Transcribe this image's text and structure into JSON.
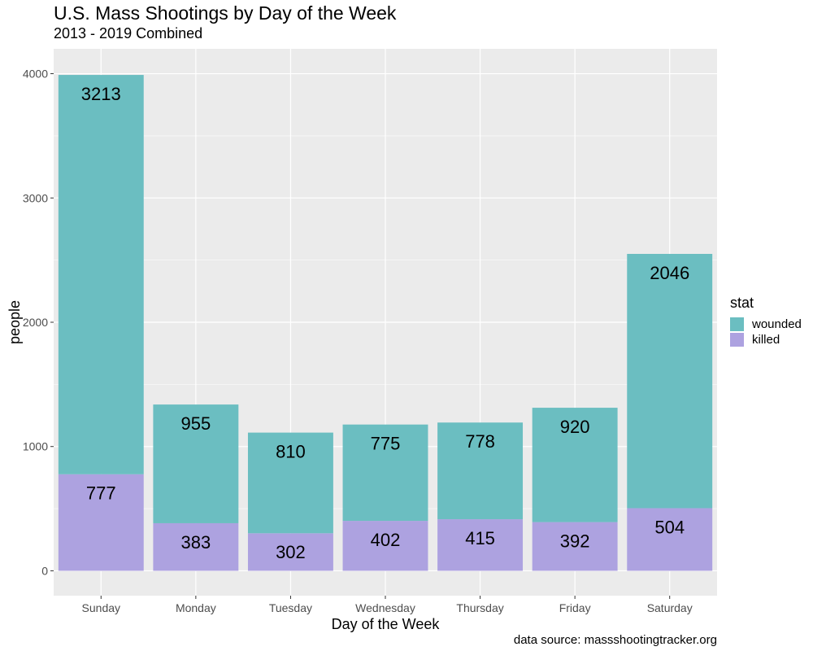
{
  "chart_data": {
    "type": "bar",
    "stacked": true,
    "title": "U.S. Mass Shootings by Day of the Week",
    "subtitle": "2013 - 2019 Combined",
    "xlabel": "Day of the Week",
    "ylabel": "people",
    "caption": "data source: massshootingtracker.org",
    "categories": [
      "Sunday",
      "Monday",
      "Tuesday",
      "Wednesday",
      "Thursday",
      "Friday",
      "Saturday"
    ],
    "series": [
      {
        "name": "killed",
        "values": [
          777,
          383,
          302,
          402,
          415,
          392,
          504
        ],
        "color": "#ada2e0"
      },
      {
        "name": "wounded",
        "values": [
          3213,
          955,
          810,
          775,
          778,
          920,
          2046
        ],
        "color": "#6bbec1"
      }
    ],
    "ylim": [
      -200,
      4200
    ],
    "yticks": [
      0,
      1000,
      2000,
      3000,
      4000
    ],
    "grid": true,
    "panel_background": "#ebebeb",
    "legend": {
      "title": "stat",
      "position": "right",
      "items": [
        {
          "label": "wounded",
          "color": "#6bbec1"
        },
        {
          "label": "killed",
          "color": "#ada2e0"
        }
      ]
    }
  }
}
